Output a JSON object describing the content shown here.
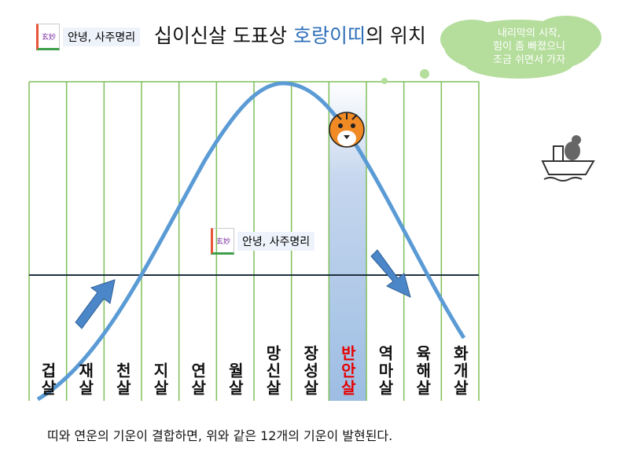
{
  "header": {
    "logo_mark": "玄妙",
    "logo_text": "안녕, 사주명리",
    "title_prefix": "십이신살 도표상",
    "title_highlight": "호랑이띠",
    "title_suffix": "의 위치"
  },
  "bubble": {
    "lines": [
      "내리막의 시작,",
      "힘이 좀 빠졌으니",
      "조금 쉬면서 가자"
    ]
  },
  "watermark": {
    "logo_mark": "玄妙",
    "logo_text": "안녕, 사주명리"
  },
  "columns": [
    {
      "label": "겁살"
    },
    {
      "label": "재살"
    },
    {
      "label": "천살"
    },
    {
      "label": "지살"
    },
    {
      "label": "연살"
    },
    {
      "label": "월살"
    },
    {
      "label": "망신살"
    },
    {
      "label": "장성살"
    },
    {
      "label": "반안살",
      "color": "#e60000"
    },
    {
      "label": "역마살"
    },
    {
      "label": "육해살"
    },
    {
      "label": "화개살"
    }
  ],
  "footer": {
    "text": "띠와 연운의 기운이 결합하면, 위와 같은 12개의 기운이 발현된다."
  }
}
